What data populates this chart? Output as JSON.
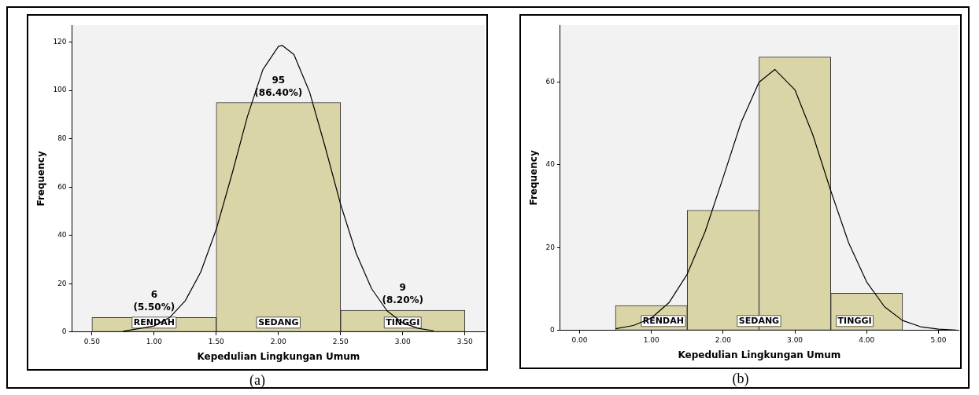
{
  "chart_data": [
    {
      "type": "histogram",
      "xlabel": "Kepedulian Lingkungan Umum",
      "ylabel": "Frequency",
      "bins": [
        0.5,
        1.5,
        2.5,
        3.5
      ],
      "values": [
        6,
        95,
        9
      ],
      "color": "#d9d5a7",
      "value_labels": [
        "6\n(5.50%)",
        "95\n(86.40%)",
        "9\n(8.20%)"
      ],
      "series": [
        {
          "type": "line",
          "color": "#000000",
          "x": [
            0.75,
            1.0,
            1.125,
            1.25,
            1.375,
            1.5,
            1.625,
            1.75,
            1.875,
            2.0,
            2.03,
            2.125,
            2.25,
            2.375,
            2.5,
            2.625,
            2.75,
            2.875,
            3.0,
            3.125,
            3.25
          ],
          "values": [
            0.3,
            2.5,
            6.0,
            12.9,
            24.8,
            42.5,
            65.1,
            89.1,
            108.6,
            118.2,
            118.6,
            114.8,
            99.4,
            76.8,
            52.9,
            32.6,
            17.9,
            8.7,
            3.8,
            1.5,
            0.5
          ]
        }
      ],
      "xlim": [
        0.34,
        3.66
      ],
      "ylim": [
        0,
        127
      ],
      "xticks": [
        {
          "value": 0.5,
          "label": "0.50"
        },
        {
          "value": 1.0,
          "label": "1.00"
        },
        {
          "value": 1.5,
          "label": "1.50"
        },
        {
          "value": 2.0,
          "label": "2.00"
        },
        {
          "value": 2.5,
          "label": "2.50"
        },
        {
          "value": 3.0,
          "label": "3.00"
        },
        {
          "value": 3.5,
          "label": "3.50"
        }
      ],
      "yticks": [
        0,
        20,
        40,
        60,
        80,
        100,
        120
      ],
      "grid": false,
      "annotations": [
        "RENDAH",
        "SEDANG",
        "TINGGI",
        "(a)"
      ]
    },
    {
      "type": "histogram",
      "xlabel": "Kepedulian Lingkungan Umum",
      "ylabel": "Frequency",
      "bins": [
        0.5,
        1.5,
        2.5,
        3.5,
        4.5
      ],
      "values": [
        6,
        29,
        66,
        9
      ],
      "color": "#d9d5a7",
      "series": [
        {
          "type": "line",
          "color": "#000000",
          "x": [
            0.5,
            0.75,
            1.0,
            1.25,
            1.5,
            1.75,
            2.0,
            2.25,
            2.5,
            2.72,
            3.0,
            3.25,
            3.5,
            3.75,
            4.0,
            4.25,
            4.5,
            4.75,
            5.0,
            5.25
          ],
          "values": [
            0.4,
            1.2,
            3.0,
            6.8,
            13.6,
            23.9,
            36.9,
            50.2,
            59.9,
            63,
            58.1,
            47.2,
            33.7,
            21.1,
            11.7,
            5.7,
            2.4,
            0.9,
            0.3,
            0.1
          ]
        }
      ],
      "xlim": [
        -0.27,
        5.28
      ],
      "ylim": [
        0,
        73.7
      ],
      "xticks": [
        {
          "value": 0,
          "label": "0.00"
        },
        {
          "value": 1,
          "label": "1.00"
        },
        {
          "value": 2,
          "label": "2.00"
        },
        {
          "value": 3,
          "label": "3.00"
        },
        {
          "value": 4,
          "label": "4.00"
        },
        {
          "value": 5,
          "label": "5.00"
        }
      ],
      "yticks": [
        0,
        20,
        40,
        60
      ],
      "grid": false,
      "annotations": [
        "RENDAH",
        "SEDANG",
        "TINGGI",
        "(b)"
      ]
    }
  ]
}
